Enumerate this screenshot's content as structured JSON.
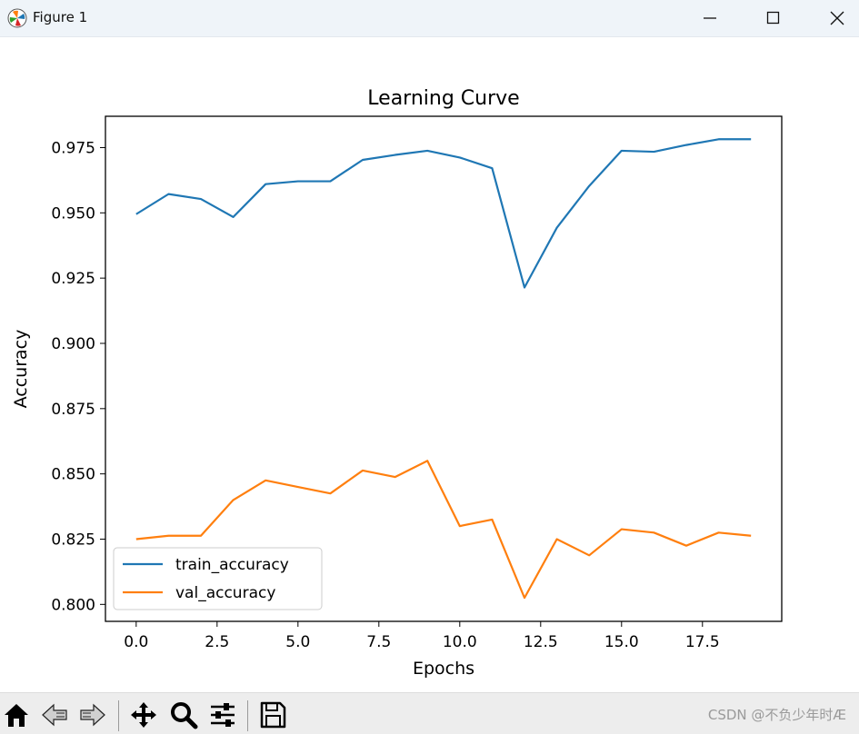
{
  "window": {
    "title": "Figure 1",
    "icon": "matplotlib-logo-icon",
    "controls": [
      "minimize-icon",
      "maximize-icon",
      "close-icon"
    ]
  },
  "toolbar": {
    "tools": [
      "home-icon",
      "back-arrow-icon",
      "forward-arrow-icon",
      "pan-icon",
      "zoom-icon",
      "configure-subplots-icon",
      "save-icon"
    ]
  },
  "watermark": "CSDN @不负少年时Æ",
  "colors": {
    "train": "#1f77b4",
    "val": "#ff7f0e"
  },
  "chart_data": {
    "type": "line",
    "title": "Learning Curve",
    "xlabel": "Epochs",
    "ylabel": "Accuracy",
    "xlim": [
      -0.95,
      19.95
    ],
    "ylim": [
      0.7935,
      0.987
    ],
    "xticks": [
      0.0,
      2.5,
      5.0,
      7.5,
      10.0,
      12.5,
      15.0,
      17.5
    ],
    "xtick_labels": [
      "0.0",
      "2.5",
      "5.0",
      "7.5",
      "10.0",
      "12.5",
      "15.0",
      "17.5"
    ],
    "yticks": [
      0.8,
      0.825,
      0.85,
      0.875,
      0.9,
      0.925,
      0.95,
      0.975
    ],
    "ytick_labels": [
      "0.800",
      "0.825",
      "0.850",
      "0.875",
      "0.900",
      "0.925",
      "0.950",
      "0.975"
    ],
    "grid": false,
    "legend_position": "lower-left",
    "x": [
      0,
      1,
      2,
      3,
      4,
      5,
      6,
      7,
      8,
      9,
      10,
      11,
      12,
      13,
      14,
      15,
      16,
      17,
      18,
      19
    ],
    "series": [
      {
        "name": "train_accuracy",
        "color": "#1f77b4",
        "values": [
          0.9495,
          0.9572,
          0.9553,
          0.9484,
          0.961,
          0.9621,
          0.9621,
          0.9703,
          0.9722,
          0.9738,
          0.9712,
          0.9671,
          0.9214,
          0.9443,
          0.9603,
          0.9738,
          0.9734,
          0.976,
          0.9782,
          0.9782
        ]
      },
      {
        "name": "val_accuracy",
        "color": "#ff7f0e",
        "values": [
          0.825,
          0.8263,
          0.8263,
          0.84,
          0.8475,
          0.845,
          0.8425,
          0.8513,
          0.8488,
          0.855,
          0.83,
          0.8325,
          0.8025,
          0.825,
          0.8188,
          0.8288,
          0.8275,
          0.8225,
          0.8275,
          0.8263
        ]
      }
    ]
  }
}
